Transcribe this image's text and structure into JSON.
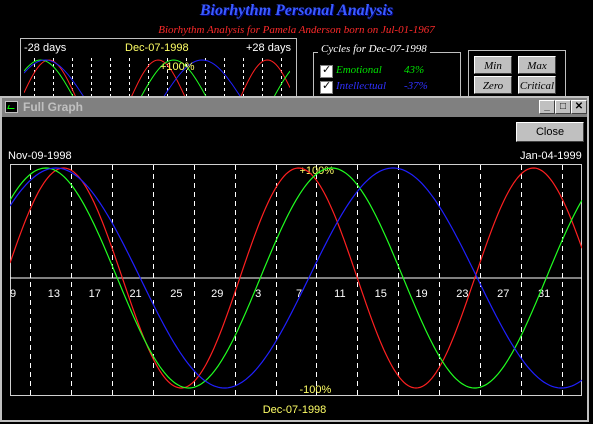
{
  "app": {
    "title": "Biorhythm Personal Analysis",
    "analysis_line": "Biorhythm Analysis for Pamela Anderson born on Jul-01-1967"
  },
  "bg_graph": {
    "left_label": "-28 days",
    "center_label": "Dec-07-1998",
    "right_label": "+28 days",
    "plus_label": "+100%"
  },
  "cycles": {
    "legend": "Cycles for Dec-07-1998",
    "rows": [
      {
        "name": "Emotional",
        "value": "43%",
        "color": "#00e000"
      },
      {
        "name": "Intellectual",
        "value": "-37%",
        "color": "#3030ff"
      }
    ]
  },
  "buttons": {
    "min": "Min",
    "max": "Max",
    "zero": "Zero",
    "critical": "Critical"
  },
  "window": {
    "title": "Full Graph",
    "minimize_icon": "minimize-icon",
    "maximize_icon": "maximize-icon",
    "close_icon": "close-icon",
    "close_button": "Close",
    "start_date": "Nov-09-1998",
    "end_date": "Jan-04-1999",
    "center_date": "Dec-07-1998"
  },
  "chart_data": {
    "type": "line",
    "plus_label": "+100%",
    "minus_label": "-100%",
    "ylim": [
      -100,
      100
    ],
    "x_tick_labels": [
      "9",
      "13",
      "17",
      "21",
      "25",
      "29",
      "3",
      "7",
      "11",
      "15",
      "19",
      "23",
      "27",
      "31"
    ],
    "x_start_day": 9,
    "x_days": 56,
    "center_day_offset": 28,
    "series": [
      {
        "color": "#ff2020",
        "period": 23,
        "peak_day_offset": 5.25
      },
      {
        "color": "#20ff20",
        "period": 28,
        "peak_day_offset": 3.5
      },
      {
        "color": "#2020ff",
        "period": 33,
        "peak_day_offset": 4.5
      }
    ],
    "grid": "dashed verticals every 4 days"
  }
}
